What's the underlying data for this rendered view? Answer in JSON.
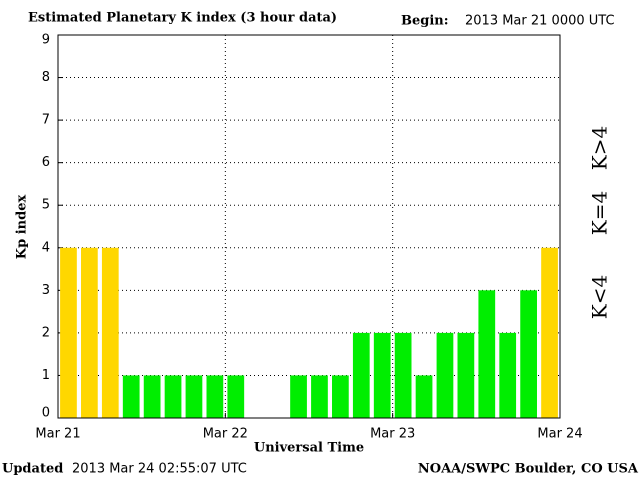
{
  "chart_data": {
    "type": "bar",
    "title": "Estimated Planetary K index (3 hour data)",
    "begin_label": "Begin:",
    "begin_value": "2013 Mar 21 0000 UTC",
    "ylabel": "Kp index",
    "xlabel": "Universal Time",
    "updated_label": "Updated",
    "updated_value": "2013 Mar 24 02:55:07 UTC",
    "credit": "NOAA/SWPC Boulder, CO USA",
    "values": [
      4,
      4,
      4,
      1,
      1,
      1,
      1,
      1,
      1,
      null,
      null,
      1,
      1,
      1,
      2,
      2,
      2,
      1,
      2,
      2,
      3,
      2,
      3,
      4
    ],
    "threshold": 4,
    "legend": [
      {
        "label": "K<4",
        "color": "#00ee00"
      },
      {
        "label": "K=4",
        "color": "#ffd700"
      },
      {
        "label": "K>4",
        "color": "#ff2a00"
      }
    ],
    "xlim": [
      0,
      24
    ],
    "xticks": [
      {
        "value": 0,
        "label": "Mar 21"
      },
      {
        "value": 8,
        "label": "Mar 22"
      },
      {
        "value": 16,
        "label": "Mar 23"
      },
      {
        "value": 24,
        "label": "Mar 24"
      }
    ],
    "ylim": [
      0,
      9
    ],
    "yticks": [
      0,
      1,
      2,
      3,
      4,
      5,
      6,
      7,
      8,
      9
    ],
    "grid": true
  }
}
